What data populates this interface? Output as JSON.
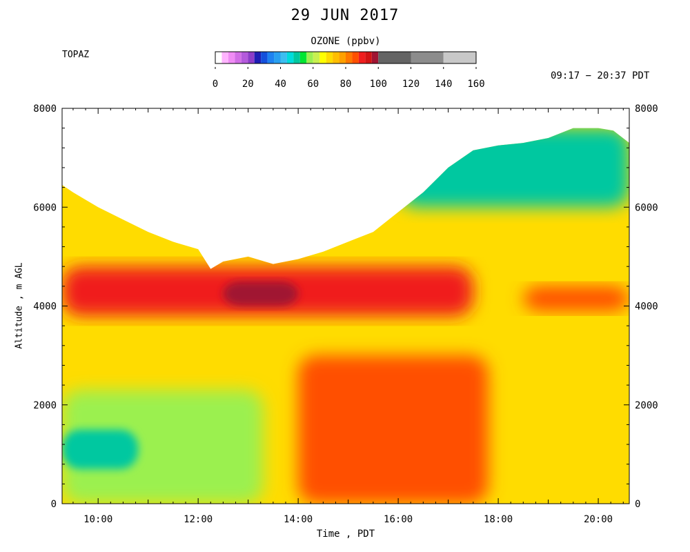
{
  "chart_data": {
    "type": "heatmap",
    "title": "29 JUN 2017",
    "instrument": "TOPAZ",
    "time_range": "09:17 − 20:37 PDT",
    "xlabel": "Time , PDT",
    "ylabel": "Altitude , m AGL",
    "x_range_hours": [
      9.28,
      20.62
    ],
    "ylim": [
      0,
      8000
    ],
    "x_ticks": [
      {
        "hour": 10,
        "label": "10:00"
      },
      {
        "hour": 12,
        "label": "12:00"
      },
      {
        "hour": 14,
        "label": "14:00"
      },
      {
        "hour": 16,
        "label": "16:00"
      },
      {
        "hour": 18,
        "label": "18:00"
      },
      {
        "hour": 20,
        "label": "20:00"
      }
    ],
    "y_ticks": [
      {
        "value": 0,
        "label": "0"
      },
      {
        "value": 2000,
        "label": "2000"
      },
      {
        "value": 4000,
        "label": "4000"
      },
      {
        "value": 6000,
        "label": "6000"
      },
      {
        "value": 8000,
        "label": "8000"
      }
    ],
    "colorbar": {
      "title": "OZONE (ppbv)",
      "tick_labels": [
        "0",
        "20",
        "40",
        "60",
        "80",
        "100",
        "120",
        "140",
        "160"
      ],
      "levels": [
        {
          "from": 0,
          "to": 4,
          "color": "#ffffff"
        },
        {
          "from": 4,
          "to": 8,
          "color": "#ffb4ff"
        },
        {
          "from": 8,
          "to": 12,
          "color": "#f08cf5"
        },
        {
          "from": 12,
          "to": 16,
          "color": "#d26ee6"
        },
        {
          "from": 16,
          "to": 20,
          "color": "#b45adc"
        },
        {
          "from": 20,
          "to": 24,
          "color": "#8c3cc8"
        },
        {
          "from": 24,
          "to": 28,
          "color": "#1e1eb4"
        },
        {
          "from": 28,
          "to": 32,
          "color": "#1450dc"
        },
        {
          "from": 32,
          "to": 36,
          "color": "#1e82f0"
        },
        {
          "from": 36,
          "to": 40,
          "color": "#28a0f0"
        },
        {
          "from": 40,
          "to": 44,
          "color": "#3cbef0"
        },
        {
          "from": 44,
          "to": 48,
          "color": "#00dcdc"
        },
        {
          "from": 48,
          "to": 52,
          "color": "#00c8a0"
        },
        {
          "from": 52,
          "to": 56,
          "color": "#00e632"
        },
        {
          "from": 56,
          "to": 60,
          "color": "#9bf050"
        },
        {
          "from": 60,
          "to": 64,
          "color": "#c8f050"
        },
        {
          "from": 64,
          "to": 68,
          "color": "#ffff00"
        },
        {
          "from": 68,
          "to": 72,
          "color": "#ffdc00"
        },
        {
          "from": 72,
          "to": 76,
          "color": "#ffbe00"
        },
        {
          "from": 76,
          "to": 80,
          "color": "#ffa000"
        },
        {
          "from": 80,
          "to": 84,
          "color": "#ff7800"
        },
        {
          "from": 84,
          "to": 88,
          "color": "#ff5000"
        },
        {
          "from": 88,
          "to": 92,
          "color": "#f01e1e"
        },
        {
          "from": 92,
          "to": 96,
          "color": "#d21414"
        },
        {
          "from": 96,
          "to": 100,
          "color": "#a01432"
        },
        {
          "from": 100,
          "to": 120,
          "color": "#646464"
        },
        {
          "from": 120,
          "to": 140,
          "color": "#8c8c8c"
        },
        {
          "from": 140,
          "to": 160,
          "color": "#c8c8c8"
        }
      ]
    },
    "data_top_altitude": [
      {
        "hour": 9.28,
        "alt": 6450
      },
      {
        "hour": 9.5,
        "alt": 6300
      },
      {
        "hour": 10.0,
        "alt": 6000
      },
      {
        "hour": 10.5,
        "alt": 5750
      },
      {
        "hour": 11.0,
        "alt": 5500
      },
      {
        "hour": 11.5,
        "alt": 5300
      },
      {
        "hour": 12.0,
        "alt": 5150
      },
      {
        "hour": 12.25,
        "alt": 4750
      },
      {
        "hour": 12.5,
        "alt": 4900
      },
      {
        "hour": 13.0,
        "alt": 5000
      },
      {
        "hour": 13.5,
        "alt": 4850
      },
      {
        "hour": 14.0,
        "alt": 4950
      },
      {
        "hour": 14.5,
        "alt": 5100
      },
      {
        "hour": 15.0,
        "alt": 5300
      },
      {
        "hour": 15.5,
        "alt": 5500
      },
      {
        "hour": 16.0,
        "alt": 5900
      },
      {
        "hour": 16.5,
        "alt": 6300
      },
      {
        "hour": 17.0,
        "alt": 6800
      },
      {
        "hour": 17.5,
        "alt": 7150
      },
      {
        "hour": 18.0,
        "alt": 7250
      },
      {
        "hour": 18.5,
        "alt": 7300
      },
      {
        "hour": 19.0,
        "alt": 7400
      },
      {
        "hour": 19.5,
        "alt": 7600
      },
      {
        "hour": 20.0,
        "alt": 7600
      },
      {
        "hour": 20.3,
        "alt": 7550
      },
      {
        "hour": 20.62,
        "alt": 7300
      }
    ],
    "ozone_features": [
      {
        "region": "background",
        "hour": [
          9.28,
          20.62
        ],
        "alt": [
          0,
          7600
        ],
        "ozone": 70
      },
      {
        "region": "residual layer",
        "hour": [
          9.28,
          17.5
        ],
        "alt": [
          3800,
          4800
        ],
        "ozone": 90
      },
      {
        "region": "layer core",
        "hour": [
          12.5,
          14.0
        ],
        "alt": [
          4000,
          4500
        ],
        "ozone": 96
      },
      {
        "region": "evening layer",
        "hour": [
          18.5,
          20.62
        ],
        "alt": [
          3900,
          4400
        ],
        "ozone": 84
      },
      {
        "region": "upper troposphere",
        "hour": [
          16.0,
          20.62
        ],
        "alt": [
          6000,
          7600
        ],
        "ozone": 50
      },
      {
        "region": "morning boundary layer",
        "hour": [
          9.28,
          13.3
        ],
        "alt": [
          0,
          2300
        ],
        "ozone": 56
      },
      {
        "region": "morning surface minimum",
        "hour": [
          9.28,
          10.8
        ],
        "alt": [
          700,
          1500
        ],
        "ozone": 48
      },
      {
        "region": "afternoon boundary layer",
        "hour": [
          14.0,
          17.8
        ],
        "alt": [
          0,
          3000
        ],
        "ozone": 84
      }
    ]
  }
}
